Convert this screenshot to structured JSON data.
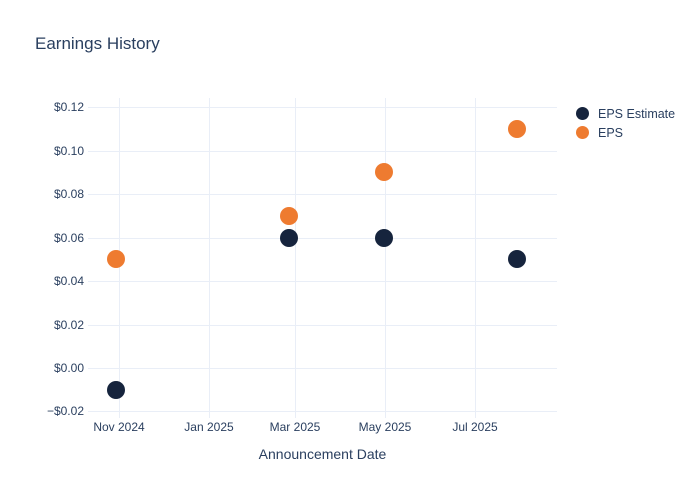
{
  "chart_data": {
    "type": "scatter",
    "title": "Earnings History",
    "xlabel": "Announcement Date",
    "ylabel": "",
    "grid": true,
    "legend_position": "right-top",
    "x_range": [
      "2024-10-11",
      "2025-08-26"
    ],
    "y_range": [
      -0.0207,
      0.1242
    ],
    "x_ticks": [
      {
        "label": "Nov 2024",
        "date": "2024-11-01"
      },
      {
        "label": "Jan 2025",
        "date": "2025-01-01"
      },
      {
        "label": "Mar 2025",
        "date": "2025-03-01"
      },
      {
        "label": "May 2025",
        "date": "2025-05-01"
      },
      {
        "label": "Jul 2025",
        "date": "2025-07-01"
      }
    ],
    "y_ticks": [
      {
        "label": "$0.12",
        "value": 0.12
      },
      {
        "label": "$0.10",
        "value": 0.1
      },
      {
        "label": "$0.08",
        "value": 0.08
      },
      {
        "label": "$0.06",
        "value": 0.06
      },
      {
        "label": "$0.04",
        "value": 0.04
      },
      {
        "label": "$0.02",
        "value": 0.02
      },
      {
        "label": "$0.00",
        "value": 0.0
      },
      {
        "label": "−$0.02",
        "value": -0.02
      }
    ],
    "series": [
      {
        "name": "EPS Estimate",
        "color": "#16243d",
        "points": [
          {
            "date": "2024-10-30",
            "value": -0.01
          },
          {
            "date": "2025-02-25",
            "value": 0.06
          },
          {
            "date": "2025-04-30",
            "value": 0.06
          },
          {
            "date": "2025-07-30",
            "value": 0.05
          }
        ]
      },
      {
        "name": "EPS",
        "color": "#ee7b30",
        "points": [
          {
            "date": "2024-10-30",
            "value": 0.05
          },
          {
            "date": "2025-02-25",
            "value": 0.07
          },
          {
            "date": "2025-04-30",
            "value": 0.09
          },
          {
            "date": "2025-07-30",
            "value": 0.11
          }
        ]
      }
    ],
    "colors": {
      "text": "#2a3f5f",
      "grid": "#e9eef7",
      "background": "#ffffff",
      "eps_estimate": "#16243d",
      "eps": "#ee7b30"
    }
  }
}
